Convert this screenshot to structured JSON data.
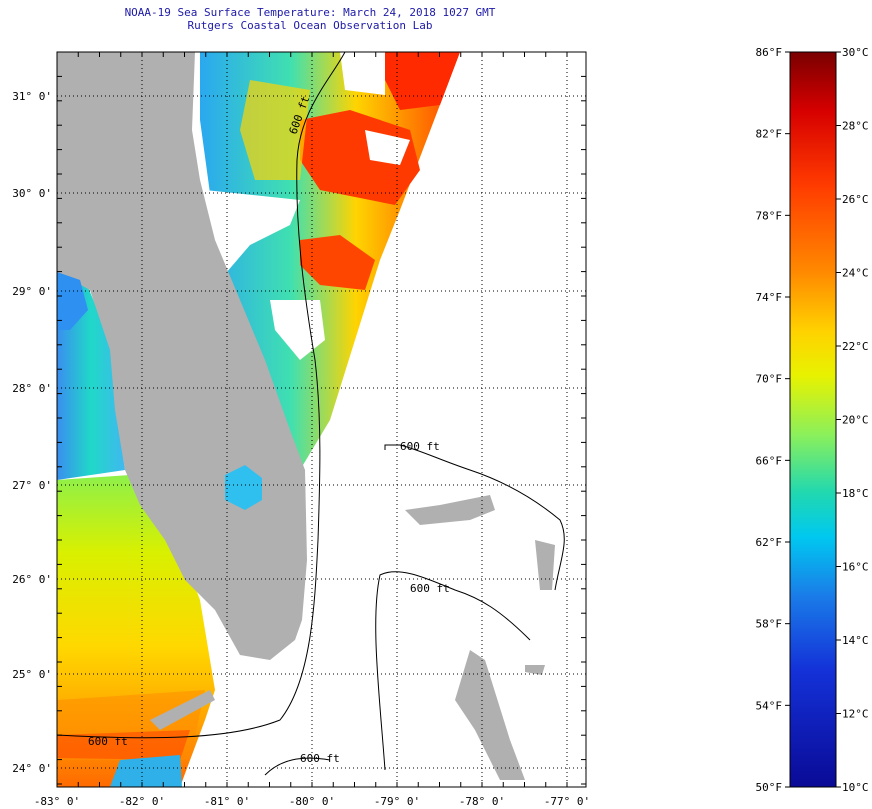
{
  "title": {
    "line1": "NOAA-19 Sea Surface Temperature:  March 24, 2018 1027 GMT",
    "line2": "Rutgers Coastal Ocean Observation Lab"
  },
  "map": {
    "lon_labels": [
      "-83° 0'",
      "-82° 0'",
      "-81° 0'",
      "-80° 0'",
      "-79° 0'",
      "-78° 0'",
      "-77° 0'"
    ],
    "lat_labels": [
      "31° 0'",
      "30° 0'",
      "29° 0'",
      "28° 0'",
      "27° 0'",
      "26° 0'",
      "25° 0'",
      "24° 0'"
    ],
    "contour_labels": [
      "600 ft",
      "600 ft",
      "600 ft",
      "600 ft",
      "600 ft"
    ],
    "colors": {
      "land": "#b0b0b0",
      "no_data": "#ffffff",
      "grid": "#000000"
    }
  },
  "colorbar": {
    "f_labels": [
      "86°F",
      "82°F",
      "78°F",
      "74°F",
      "70°F",
      "66°F",
      "62°F",
      "58°F",
      "54°F",
      "50°F"
    ],
    "c_labels": [
      "30°C",
      "28°C",
      "26°C",
      "24°C",
      "22°C",
      "20°C",
      "18°C",
      "16°C",
      "14°C",
      "12°C",
      "10°C"
    ],
    "scale_colors": [
      "#7a0000",
      "#d60000",
      "#ff3a00",
      "#ff8a00",
      "#ffd200",
      "#e8f200",
      "#8cf05a",
      "#20d8b0",
      "#00c8f0",
      "#1a7ce8",
      "#1432d8",
      "#0a0a96"
    ]
  }
}
